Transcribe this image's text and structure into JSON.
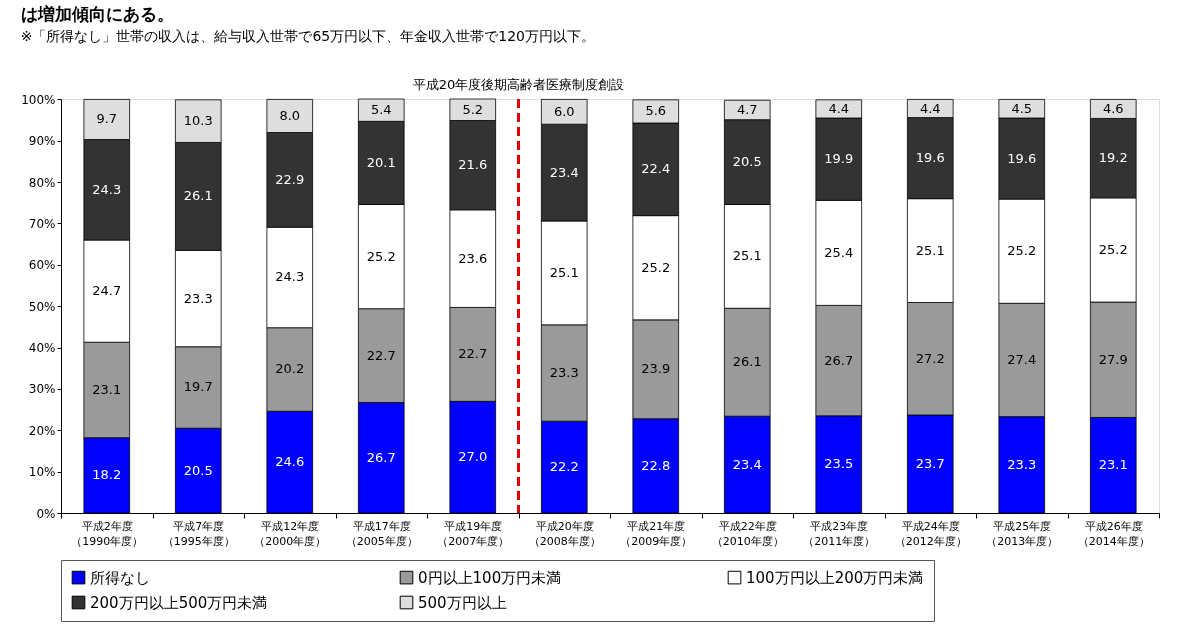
{
  "chart_data": {
    "type": "bar",
    "stacked": true,
    "annotations": [
      "は増加傾向にある。",
      "※「所得なし」世帯の収入は、給与収入世帯で65万円以下、年金収入世帯で120万円以下。"
    ],
    "categories": [
      "平成2年度（1990年度）",
      "平成7年度（1995年度）",
      "平成12年度（2000年度）",
      "平成17年度（2005年度）",
      "平成19年度（2007年度）",
      "平成20年度（2008年度）",
      "平成21年度（2009年度）",
      "平成22年度（2010年度）",
      "平成23年度（2011年度）",
      "平成24年度（2012年度）",
      "平成25年度（2013年度）",
      "平成26年度（2014年度）"
    ],
    "series": [
      {
        "name": "所得なし",
        "color": "#0000ff",
        "values": [
          18.2,
          20.5,
          24.6,
          26.7,
          27.0,
          22.2,
          22.8,
          23.4,
          23.5,
          23.7,
          23.3,
          23.1
        ],
        "value_labels": [
          "18.2",
          "20.5",
          "24.6",
          "26.7",
          "27.0",
          "22.2",
          "22.8",
          "23.4",
          "23.5",
          "23.7",
          "23.3",
          "23.1"
        ]
      },
      {
        "name": "0円以上100万円未満",
        "color": "#9a9a9a",
        "values": [
          23.1,
          19.7,
          20.2,
          22.7,
          22.7,
          23.3,
          23.9,
          26.1,
          26.7,
          27.2,
          27.4,
          27.9
        ],
        "value_labels": [
          "23.1",
          "19.7",
          "20.2",
          "22.7",
          "22.7",
          "23.3",
          "23.9",
          "26.1",
          "26.7",
          "27.2",
          "27.4",
          "27.9"
        ]
      },
      {
        "name": "100万円以上200万円未満",
        "color": "#ffffff",
        "values": [
          24.7,
          23.3,
          24.3,
          25.2,
          23.6,
          25.1,
          25.2,
          25.1,
          25.4,
          25.1,
          25.2,
          25.2
        ],
        "value_labels": [
          "24.7",
          "23.3",
          "24.3",
          "25.2",
          "23.6",
          "25.1",
          "25.2",
          "25.1",
          "25.4",
          "25.1",
          "25.2",
          "25.2"
        ]
      },
      {
        "name": "200万円以上500万円未満",
        "color": "#333333",
        "values": [
          24.3,
          26.1,
          22.9,
          20.1,
          21.6,
          23.4,
          22.4,
          20.5,
          19.9,
          19.6,
          19.6,
          19.2
        ],
        "value_labels": [
          "24.3",
          "26.1",
          "22.9",
          "20.1",
          "21.6",
          "23.4",
          "22.4",
          "20.5",
          "19.9",
          "19.6",
          "19.6",
          "19.2"
        ]
      },
      {
        "name": "500万円以上",
        "color": "#dedede",
        "values": [
          9.7,
          10.3,
          8.0,
          5.4,
          5.2,
          6.0,
          5.6,
          4.7,
          4.4,
          4.4,
          4.5,
          4.6
        ],
        "value_labels": [
          "9.7",
          "10.3",
          "8.0",
          "5.4",
          "5.2",
          "6.0",
          "5.6",
          "4.7",
          "4.4",
          "4.4",
          "4.5",
          "4.6"
        ]
      }
    ],
    "ylim": [
      0,
      100.1
    ],
    "yticks": [
      {
        "value": 0,
        "label": "0%"
      },
      {
        "value": 10,
        "label": "10%"
      },
      {
        "value": 20,
        "label": "20%"
      },
      {
        "value": 30,
        "label": "30%"
      },
      {
        "value": 40,
        "label": "40%"
      },
      {
        "value": 50,
        "label": "50%"
      },
      {
        "value": 60,
        "label": "60%"
      },
      {
        "value": 70,
        "label": "70%"
      },
      {
        "value": 80,
        "label": "80%"
      },
      {
        "value": 90,
        "label": "90%"
      },
      {
        "value": 100,
        "label": "100%"
      }
    ],
    "ref_lines": [
      {
        "axis": "x",
        "value": "平成20年度（2008年度）",
        "label": "平成20年度後期高齢者医療制度創設",
        "color": "#e00000",
        "line_style": "dashed"
      }
    ],
    "legend": "bottom",
    "grid": false
  }
}
